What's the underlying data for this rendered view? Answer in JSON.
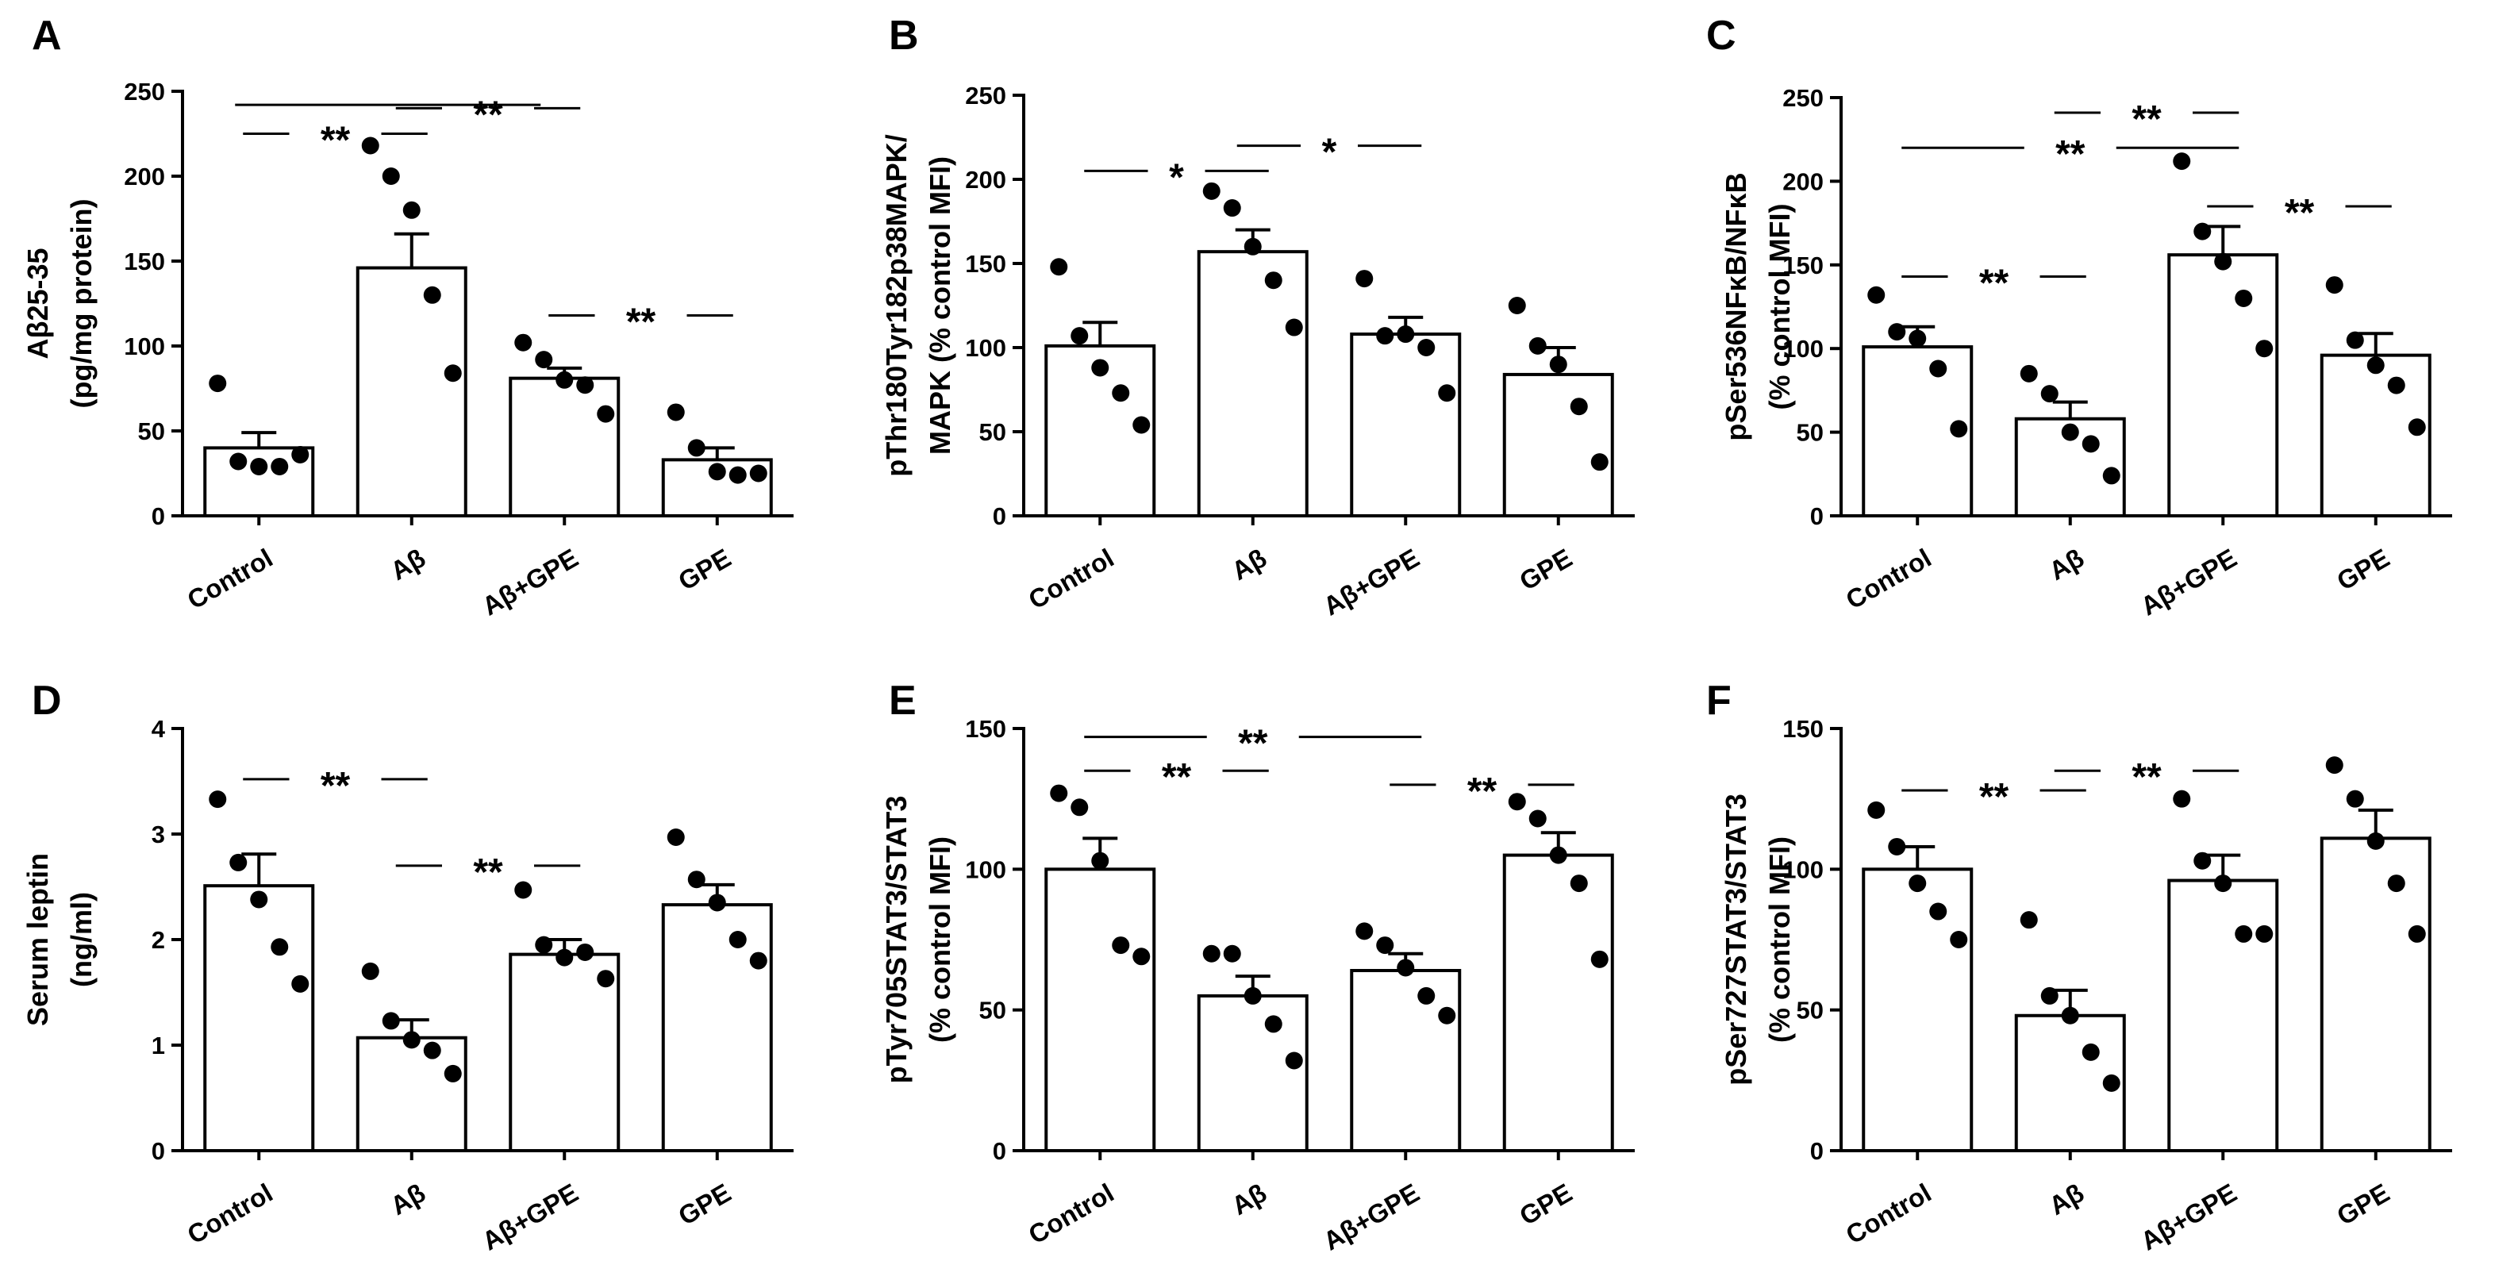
{
  "chart_data": [
    {
      "type": "bar",
      "panel": "A",
      "ylabel_lines": [
        "Aβ25-35",
        "(pg/mg protein)"
      ],
      "categories": [
        "Control",
        "Aβ",
        "Aβ+GPE",
        "GPE"
      ],
      "values": [
        40,
        146,
        81,
        33
      ],
      "errors": [
        9,
        20,
        6,
        7
      ],
      "points": [
        [
          78,
          32,
          29,
          29,
          36
        ],
        [
          218,
          200,
          180,
          130,
          84
        ],
        [
          102,
          92,
          80,
          77,
          60
        ],
        [
          61,
          40,
          26,
          24,
          25
        ]
      ],
      "ylim": [
        0,
        250
      ],
      "yticks": [
        0,
        50,
        100,
        150,
        200,
        250
      ],
      "significance": [
        {
          "from": 0,
          "to": 1,
          "label": "**",
          "y": 225
        },
        {
          "from": 1,
          "to": 2,
          "label": "**",
          "y": 240
        },
        {
          "from": 2,
          "to": 3,
          "label": "**",
          "y": 118
        }
      ],
      "spans": [
        {
          "from": 0,
          "to": 2,
          "y": 242
        }
      ]
    },
    {
      "type": "bar",
      "panel": "B",
      "ylabel_lines": [
        "pThr180Tyr182p38MAPK/",
        "MAPK (% control MFI)"
      ],
      "categories": [
        "Control",
        "Aβ",
        "Aβ+GPE",
        "GPE"
      ],
      "values": [
        101,
        157,
        108,
        84
      ],
      "errors": [
        14,
        13,
        10,
        16
      ],
      "points": [
        [
          148,
          107,
          88,
          73,
          54
        ],
        [
          193,
          183,
          160,
          140,
          112
        ],
        [
          141,
          107,
          108,
          100,
          73
        ],
        [
          125,
          101,
          90,
          65,
          32
        ]
      ],
      "ylim": [
        0,
        250
      ],
      "yticks": [
        0,
        50,
        100,
        150,
        200,
        250
      ],
      "significance": [
        {
          "from": 0,
          "to": 1,
          "label": "*",
          "y": 205
        },
        {
          "from": 1,
          "to": 2,
          "label": "*",
          "y": 220
        }
      ],
      "spans": []
    },
    {
      "type": "bar",
      "panel": "C",
      "ylabel_lines": [
        "pSer536NFκB/NFκB",
        "(% control MFI)"
      ],
      "categories": [
        "Control",
        "Aβ",
        "Aβ+GPE",
        "GPE"
      ],
      "values": [
        101,
        58,
        156,
        96
      ],
      "errors": [
        12,
        10,
        17,
        13
      ],
      "points": [
        [
          132,
          110,
          106,
          88,
          52
        ],
        [
          85,
          73,
          50,
          43,
          24
        ],
        [
          212,
          170,
          152,
          130,
          100
        ],
        [
          138,
          105,
          90,
          78,
          53
        ]
      ],
      "ylim": [
        0,
        250
      ],
      "yticks": [
        0,
        50,
        100,
        150,
        200,
        250
      ],
      "significance": [
        {
          "from": 0,
          "to": 1,
          "label": "**",
          "y": 143
        },
        {
          "from": 0,
          "to": 2,
          "label": "**",
          "y": 220
        },
        {
          "from": 1,
          "to": 2,
          "label": "**",
          "y": 241
        },
        {
          "from": 2,
          "to": 3,
          "label": "**",
          "y": 185
        }
      ],
      "spans": []
    },
    {
      "type": "bar",
      "panel": "D",
      "ylabel_lines": [
        "Serum leptin",
        "(ng/ml)"
      ],
      "categories": [
        "Control",
        "Aβ",
        "Aβ+GPE",
        "GPE"
      ],
      "values": [
        2.51,
        1.07,
        1.86,
        2.33
      ],
      "errors": [
        0.3,
        0.17,
        0.14,
        0.19
      ],
      "points": [
        [
          3.33,
          2.73,
          2.38,
          1.93,
          1.58
        ],
        [
          1.7,
          1.23,
          1.05,
          0.95,
          0.73
        ],
        [
          2.47,
          1.95,
          1.83,
          1.88,
          1.63
        ],
        [
          2.97,
          2.57,
          2.35,
          2.0,
          1.8
        ]
      ],
      "ylim": [
        0,
        4
      ],
      "yticks": [
        0,
        1,
        2,
        3,
        4
      ],
      "significance": [
        {
          "from": 0,
          "to": 1,
          "label": "**",
          "y": 3.52
        },
        {
          "from": 1,
          "to": 2,
          "label": "**",
          "y": 2.7
        }
      ],
      "spans": []
    },
    {
      "type": "bar",
      "panel": "E",
      "ylabel_lines": [
        "pTyr705STAT3/STAT3",
        "(% control MFI)"
      ],
      "categories": [
        "Control",
        "Aβ",
        "Aβ+GPE",
        "GPE"
      ],
      "values": [
        100,
        55,
        64,
        105
      ],
      "errors": [
        11,
        7,
        6,
        8
      ],
      "points": [
        [
          127,
          122,
          103,
          73,
          69
        ],
        [
          70,
          70,
          55,
          45,
          32
        ],
        [
          78,
          73,
          65,
          55,
          48
        ],
        [
          124,
          118,
          105,
          95,
          68
        ]
      ],
      "ylim": [
        0,
        150
      ],
      "yticks": [
        0,
        50,
        100,
        150
      ],
      "significance": [
        {
          "from": 0,
          "to": 1,
          "label": "**",
          "y": 135
        },
        {
          "from": 0,
          "to": 2,
          "label": "**",
          "y": 147
        },
        {
          "from": 2,
          "to": 3,
          "label": "**",
          "y": 130
        }
      ],
      "spans": []
    },
    {
      "type": "bar",
      "panel": "F",
      "ylabel_lines": [
        "pSer727STAT3/STAT3",
        "(% control MFI)"
      ],
      "categories": [
        "Control",
        "Aβ",
        "Aβ+GPE",
        "GPE"
      ],
      "values": [
        100,
        48,
        96,
        111
      ],
      "errors": [
        8,
        9,
        9,
        10
      ],
      "points": [
        [
          121,
          108,
          95,
          85,
          75
        ],
        [
          82,
          55,
          48,
          35,
          24
        ],
        [
          125,
          103,
          95,
          77,
          77
        ],
        [
          137,
          125,
          110,
          95,
          77
        ]
      ],
      "ylim": [
        0,
        150
      ],
      "yticks": [
        0,
        50,
        100,
        150
      ],
      "significance": [
        {
          "from": 0,
          "to": 1,
          "label": "**",
          "y": 128
        },
        {
          "from": 1,
          "to": 2,
          "label": "**",
          "y": 135
        }
      ],
      "spans": []
    }
  ]
}
